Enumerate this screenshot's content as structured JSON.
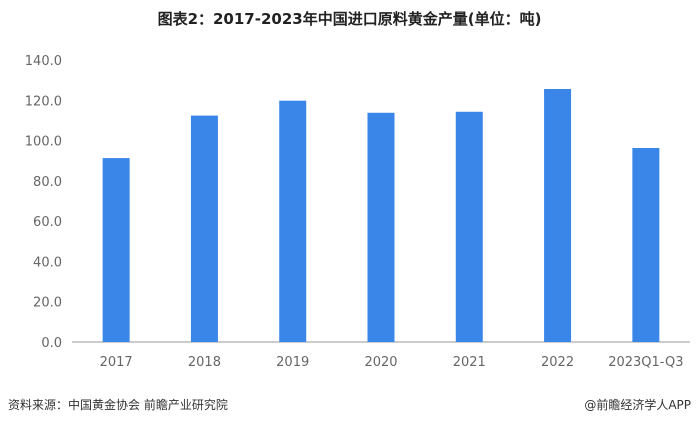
{
  "title": "图表2：2017-2023年中国进口原料黄金产量(单位：吨)",
  "footer": {
    "source": "资料来源：中国黄金协会 前瞻产业研究院",
    "brand": "@前瞻经济学人APP"
  },
  "colors": {
    "bar": "#3a86e8",
    "axis": "#999999",
    "tick_text": "#666666"
  },
  "chart_data": {
    "type": "bar",
    "title": "图表2：2017-2023年中国进口原料黄金产量(单位：吨)",
    "categories": [
      "2017",
      "2018",
      "2019",
      "2020",
      "2021",
      "2022",
      "2023Q1-Q3"
    ],
    "series": [
      {
        "values": [
          91.3,
          112.4,
          119.8,
          113.8,
          114.3,
          125.6,
          96.3
        ]
      }
    ],
    "y_ticks": [
      "0.0",
      "20.0",
      "40.0",
      "60.0",
      "80.0",
      "100.0",
      "120.0",
      "140.0"
    ],
    "ylim": [
      0,
      140
    ],
    "xlabel": "",
    "ylabel": "",
    "grid": false,
    "legend": "none"
  }
}
